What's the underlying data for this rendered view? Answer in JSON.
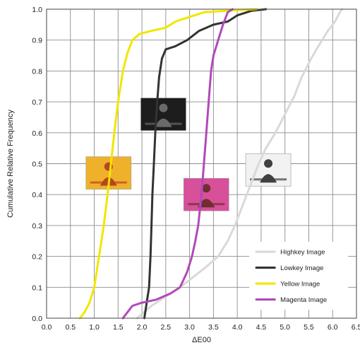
{
  "chart_data": {
    "type": "line",
    "title": "",
    "xlabel": "ΔE00",
    "ylabel": "Cumulative Relative Frequency",
    "xlim": [
      0.0,
      6.5
    ],
    "ylim": [
      0.0,
      1.0
    ],
    "x_ticks": [
      "0.0",
      "0.5",
      "1.0",
      "1.5",
      "2.0",
      "2.5",
      "3.0",
      "3.5",
      "4.0",
      "4.5",
      "5.0",
      "5.5",
      "6.0",
      "6.5"
    ],
    "y_ticks": [
      "0.0",
      "0.1",
      "0.2",
      "0.3",
      "0.4",
      "0.5",
      "0.6",
      "0.7",
      "0.8",
      "0.9",
      "1.0"
    ],
    "grid": true,
    "legend_position": "bottom-right",
    "series": [
      {
        "name": "Highkey Image",
        "color": "#d9d9d9",
        "points": [
          [
            1.9,
            0.0
          ],
          [
            2.05,
            0.02
          ],
          [
            2.2,
            0.04
          ],
          [
            2.5,
            0.07
          ],
          [
            2.8,
            0.1
          ],
          [
            3.05,
            0.13
          ],
          [
            3.3,
            0.16
          ],
          [
            3.6,
            0.2
          ],
          [
            3.8,
            0.25
          ],
          [
            3.95,
            0.3
          ],
          [
            4.1,
            0.36
          ],
          [
            4.25,
            0.42
          ],
          [
            4.45,
            0.5
          ],
          [
            4.6,
            0.55
          ],
          [
            4.8,
            0.6
          ],
          [
            5.0,
            0.66
          ],
          [
            5.2,
            0.72
          ],
          [
            5.35,
            0.78
          ],
          [
            5.55,
            0.84
          ],
          [
            5.7,
            0.88
          ],
          [
            5.9,
            0.93
          ],
          [
            6.05,
            0.96
          ],
          [
            6.15,
            0.99
          ],
          [
            6.2,
            1.0
          ]
        ]
      },
      {
        "name": "Lowkey Image",
        "color": "#333333",
        "points": [
          [
            2.05,
            0.0
          ],
          [
            2.1,
            0.05
          ],
          [
            2.15,
            0.1
          ],
          [
            2.18,
            0.2
          ],
          [
            2.2,
            0.3
          ],
          [
            2.22,
            0.4
          ],
          [
            2.25,
            0.5
          ],
          [
            2.28,
            0.6
          ],
          [
            2.32,
            0.7
          ],
          [
            2.36,
            0.78
          ],
          [
            2.42,
            0.84
          ],
          [
            2.5,
            0.87
          ],
          [
            2.7,
            0.88
          ],
          [
            2.95,
            0.9
          ],
          [
            3.2,
            0.93
          ],
          [
            3.5,
            0.95
          ],
          [
            3.8,
            0.96
          ],
          [
            4.0,
            0.98
          ],
          [
            4.3,
            0.995
          ],
          [
            4.6,
            1.0
          ]
        ]
      },
      {
        "name": "Yellow Image",
        "color": "#f2e600",
        "points": [
          [
            0.7,
            0.0
          ],
          [
            0.8,
            0.02
          ],
          [
            0.9,
            0.05
          ],
          [
            1.0,
            0.1
          ],
          [
            1.05,
            0.15
          ],
          [
            1.1,
            0.2
          ],
          [
            1.15,
            0.25
          ],
          [
            1.2,
            0.3
          ],
          [
            1.28,
            0.4
          ],
          [
            1.35,
            0.5
          ],
          [
            1.42,
            0.6
          ],
          [
            1.5,
            0.7
          ],
          [
            1.6,
            0.8
          ],
          [
            1.7,
            0.86
          ],
          [
            1.8,
            0.9
          ],
          [
            1.95,
            0.92
          ],
          [
            2.2,
            0.93
          ],
          [
            2.5,
            0.94
          ],
          [
            2.7,
            0.96
          ],
          [
            2.9,
            0.97
          ],
          [
            3.3,
            0.99
          ],
          [
            4.0,
            0.997
          ],
          [
            4.4,
            1.0
          ]
        ]
      },
      {
        "name": "Magenta Image",
        "color": "#b04ab8",
        "points": [
          [
            1.6,
            0.0
          ],
          [
            1.7,
            0.02
          ],
          [
            1.8,
            0.04
          ],
          [
            2.0,
            0.05
          ],
          [
            2.3,
            0.06
          ],
          [
            2.6,
            0.08
          ],
          [
            2.8,
            0.1
          ],
          [
            2.95,
            0.15
          ],
          [
            3.05,
            0.2
          ],
          [
            3.12,
            0.25
          ],
          [
            3.18,
            0.3
          ],
          [
            3.25,
            0.4
          ],
          [
            3.3,
            0.5
          ],
          [
            3.35,
            0.6
          ],
          [
            3.4,
            0.7
          ],
          [
            3.45,
            0.8
          ],
          [
            3.5,
            0.85
          ],
          [
            3.6,
            0.9
          ],
          [
            3.7,
            0.95
          ],
          [
            3.8,
            0.99
          ],
          [
            3.9,
            1.0
          ]
        ]
      }
    ],
    "thumbnails": [
      {
        "label": "Yellow Image",
        "bg": "#f0b12a",
        "figure": "#b8451f",
        "x": 1.3,
        "y": 0.47
      },
      {
        "label": "Lowkey Image",
        "bg": "#1d1d1d",
        "figure": "#6a6a6a",
        "x": 2.45,
        "y": 0.66
      },
      {
        "label": "Magenta Image",
        "bg": "#d84f9a",
        "figure": "#6d2f2f",
        "x": 3.35,
        "y": 0.4
      },
      {
        "label": "Highkey Image",
        "bg": "#f2f2f2",
        "figure": "#404040",
        "x": 4.65,
        "y": 0.48
      }
    ]
  }
}
